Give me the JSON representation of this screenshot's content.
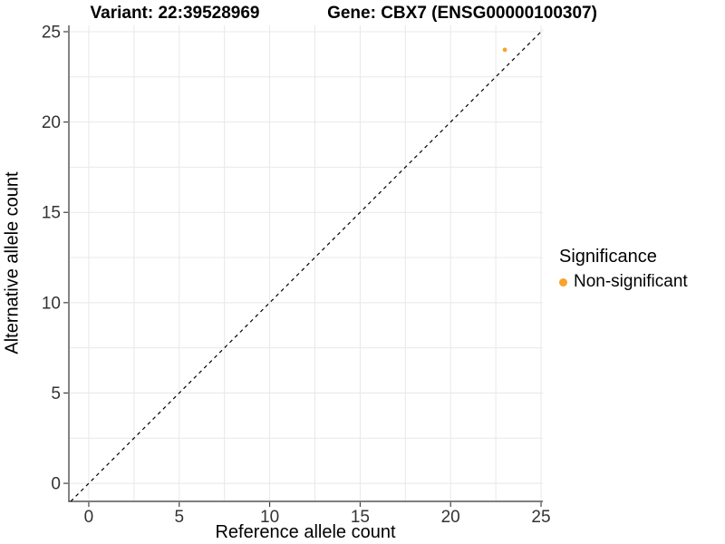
{
  "chart_data": {
    "type": "scatter",
    "title_left": "Variant: 22:39528969",
    "title_right": "Gene: CBX7 (ENSG00000100307)",
    "xlabel": "Reference allele count",
    "ylabel": "Alternative allele count",
    "x_ticks": [
      0,
      5,
      10,
      15,
      20,
      25
    ],
    "y_ticks": [
      0,
      5,
      10,
      15,
      20,
      25
    ],
    "minor_grid_step": 2.5,
    "xlim": [
      -1.1,
      25.1
    ],
    "ylim": [
      -1.0,
      25.35
    ],
    "grid": "major+minor",
    "reference_line": {
      "type": "identity",
      "slope": 1,
      "intercept": 0,
      "style": "dashed",
      "color": "#000000"
    },
    "series": [
      {
        "name": "Non-significant",
        "color": "#F9A32B",
        "points": [
          {
            "x": 23,
            "y": 24
          }
        ],
        "point_radius": 2.4
      }
    ],
    "legend": {
      "title": "Significance",
      "position": "right",
      "entries": [
        {
          "label": "Non-significant",
          "color": "#F9A32B"
        }
      ]
    },
    "colors": {
      "grid": "#E8E8E8",
      "axis_line": "#333333",
      "tick_mark": "#333333",
      "tick_text": "#333333"
    }
  }
}
